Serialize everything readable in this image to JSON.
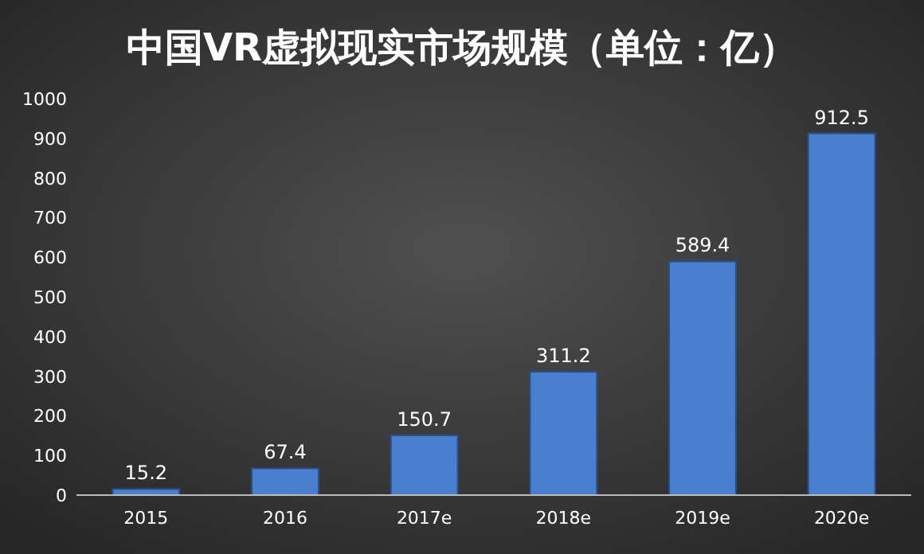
{
  "chart_data": {
    "type": "bar",
    "title": "中国VR虚拟现实市场规模（单位：亿）",
    "categories": [
      "2015",
      "2016",
      "2017e",
      "2018e",
      "2019e",
      "2020e"
    ],
    "values": [
      15.2,
      67.4,
      150.7,
      311.2,
      589.4,
      912.5
    ],
    "color": "#4a7fcf",
    "ylim": [
      0,
      1000
    ],
    "yticks": [
      0,
      100,
      200,
      300,
      400,
      500,
      600,
      700,
      800,
      900,
      1000
    ],
    "data_labels": true
  }
}
